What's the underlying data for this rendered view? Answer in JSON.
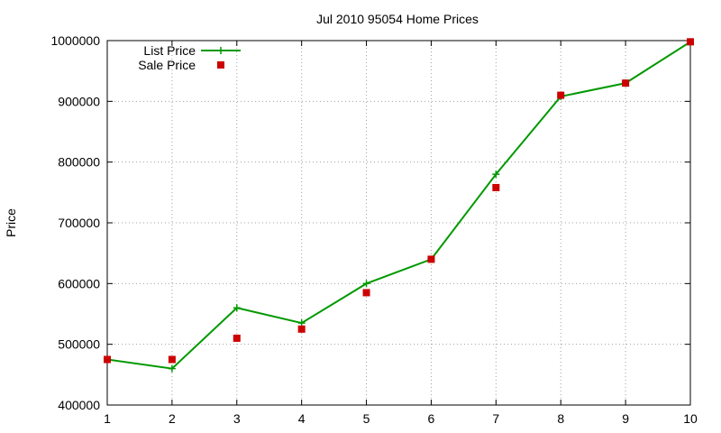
{
  "chart_data": {
    "type": "line",
    "title": "Jul 2010 95054 Home Prices",
    "xlabel": "",
    "ylabel": "Price",
    "x": [
      1,
      2,
      3,
      4,
      5,
      6,
      7,
      8,
      9,
      10
    ],
    "xlim": [
      1,
      10
    ],
    "ylim": [
      400000,
      1000000
    ],
    "x_ticks": [
      1,
      2,
      3,
      4,
      5,
      6,
      7,
      8,
      9,
      10
    ],
    "y_ticks": [
      400000,
      500000,
      600000,
      700000,
      800000,
      900000,
      1000000
    ],
    "grid": true,
    "legend_position": "top-left",
    "series": [
      {
        "name": "List Price",
        "style": "line-with-plus-markers",
        "color": "#009900",
        "values": [
          475000,
          460000,
          560000,
          535000,
          600000,
          640000,
          780000,
          908000,
          930000,
          998000
        ]
      },
      {
        "name": "Sale Price",
        "style": "square-markers",
        "color": "#cc0000",
        "values": [
          475000,
          475000,
          510000,
          525000,
          585000,
          640000,
          758000,
          910000,
          930000,
          998000
        ]
      }
    ]
  }
}
